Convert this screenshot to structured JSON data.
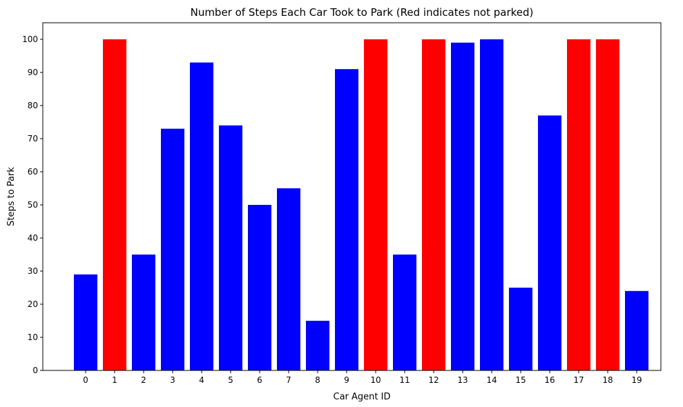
{
  "chart_data": {
    "type": "bar",
    "title": "Number of Steps Each Car Took to Park (Red indicates not parked)",
    "xlabel": "Car Agent ID",
    "ylabel": "Steps to Park",
    "categories": [
      "0",
      "1",
      "2",
      "3",
      "4",
      "5",
      "6",
      "7",
      "8",
      "9",
      "10",
      "11",
      "12",
      "13",
      "14",
      "15",
      "16",
      "17",
      "18",
      "19"
    ],
    "values": [
      29,
      100,
      35,
      73,
      93,
      74,
      50,
      55,
      15,
      91,
      100,
      35,
      100,
      99,
      100,
      25,
      77,
      100,
      100,
      24
    ],
    "parked": [
      true,
      false,
      true,
      true,
      true,
      true,
      true,
      true,
      true,
      true,
      false,
      true,
      false,
      true,
      true,
      true,
      true,
      false,
      false,
      true
    ],
    "ylim": [
      0,
      105
    ],
    "yticks": [
      0,
      10,
      20,
      30,
      40,
      50,
      60,
      70,
      80,
      90,
      100
    ],
    "grid": false,
    "colors": {
      "parked": "#0000ff",
      "not_parked": "#ff0000"
    }
  }
}
